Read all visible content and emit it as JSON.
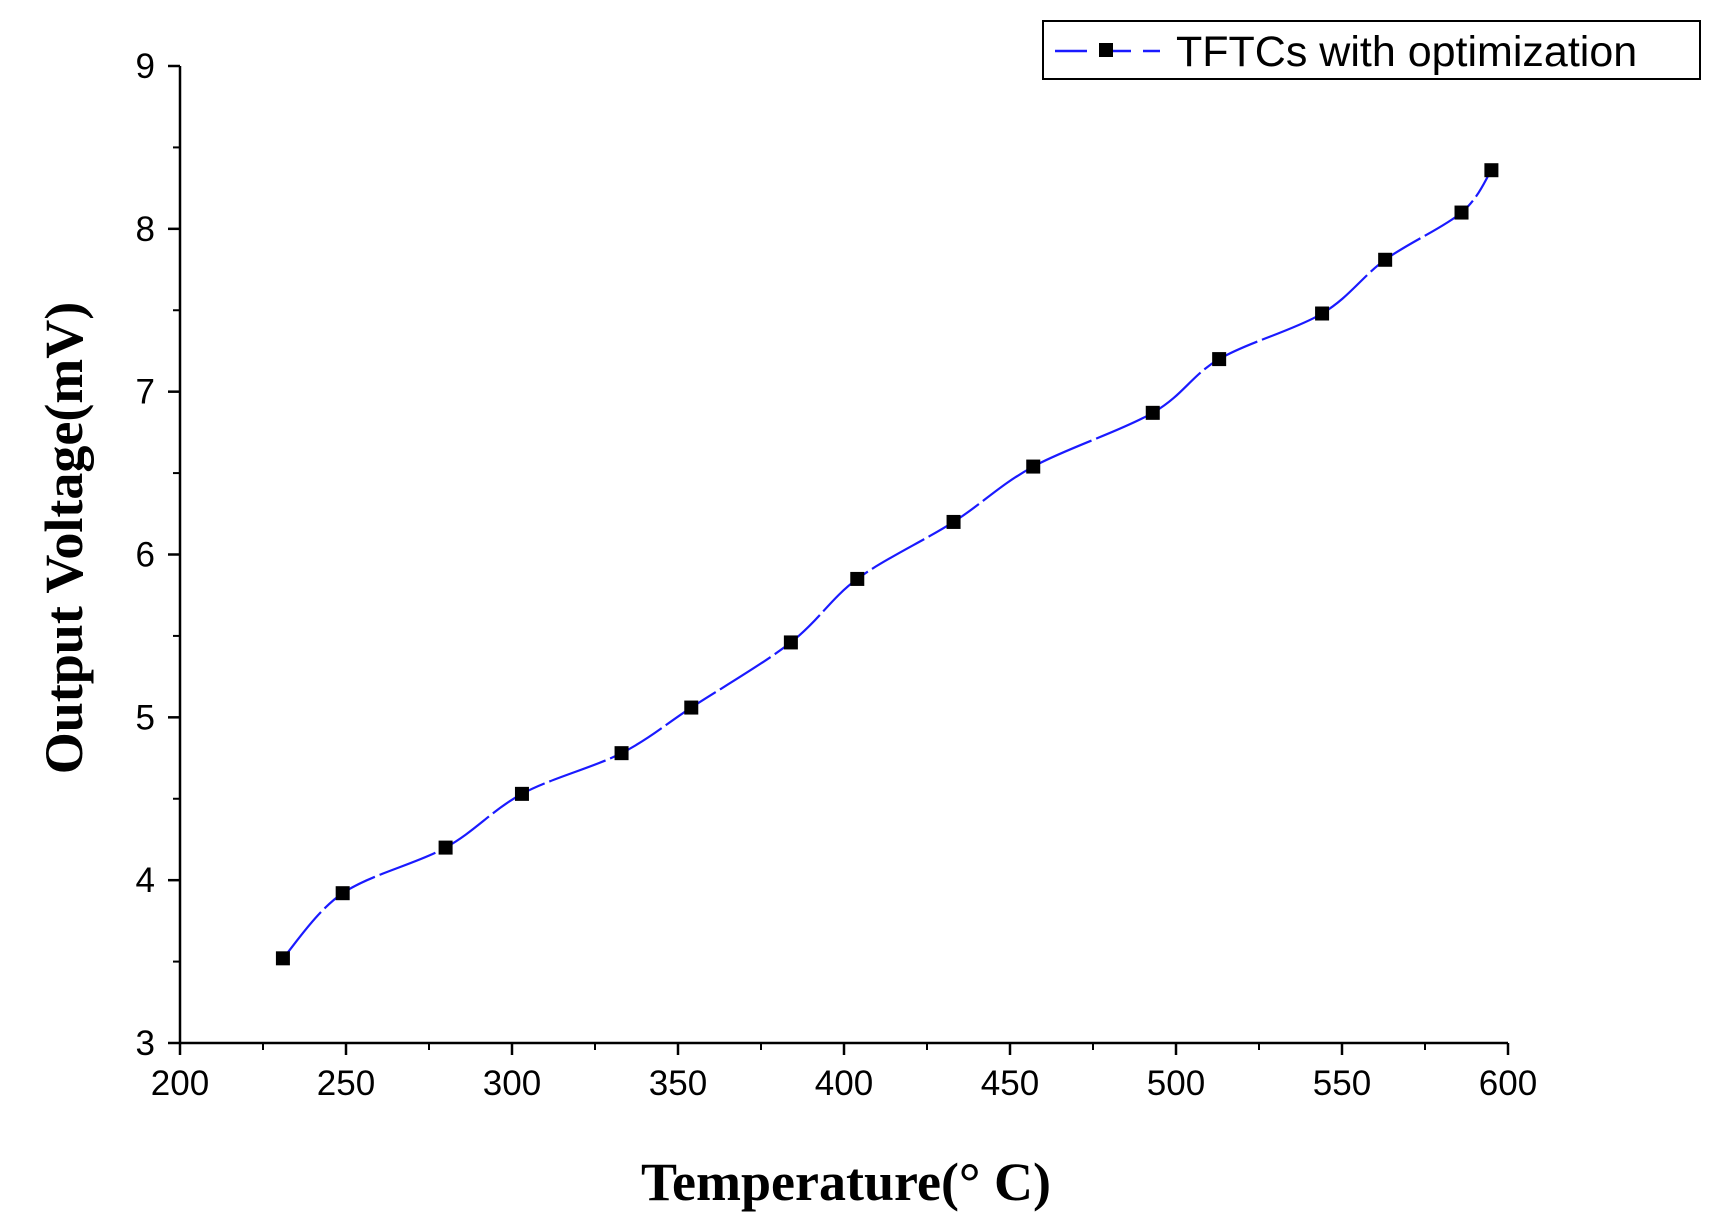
{
  "chart_data": {
    "type": "line",
    "title": "",
    "xlabel": "Temperature(° C)",
    "ylabel": "Output Voltage(mV)",
    "xlim": [
      200,
      600
    ],
    "ylim": [
      3,
      9
    ],
    "xticks": [
      200,
      250,
      300,
      350,
      400,
      450,
      500,
      550,
      600
    ],
    "yticks": [
      3,
      4,
      5,
      6,
      7,
      8,
      9
    ],
    "x_tick_labels": [
      "200",
      "250",
      "300",
      "350",
      "400",
      "450",
      "500",
      "550",
      "600"
    ],
    "y_tick_labels": [
      "3",
      "4",
      "5",
      "6",
      "7",
      "8",
      "9"
    ],
    "grid": false,
    "legend": {
      "position": "top-right",
      "entries": [
        "TFTCs with optimization"
      ]
    },
    "series": [
      {
        "name": "TFTCs with optimization",
        "line_color": "#1a1aff",
        "marker_color": "#000000",
        "line_style": "dashed",
        "marker": "square",
        "x": [
          231,
          249,
          280,
          303,
          333,
          354,
          384,
          404,
          433,
          457,
          493,
          513,
          544,
          563,
          586,
          595
        ],
        "y": [
          3.52,
          3.92,
          4.2,
          4.53,
          4.78,
          5.06,
          5.46,
          5.85,
          6.2,
          6.54,
          6.87,
          7.2,
          7.48,
          7.81,
          8.1,
          8.36
        ]
      }
    ]
  }
}
